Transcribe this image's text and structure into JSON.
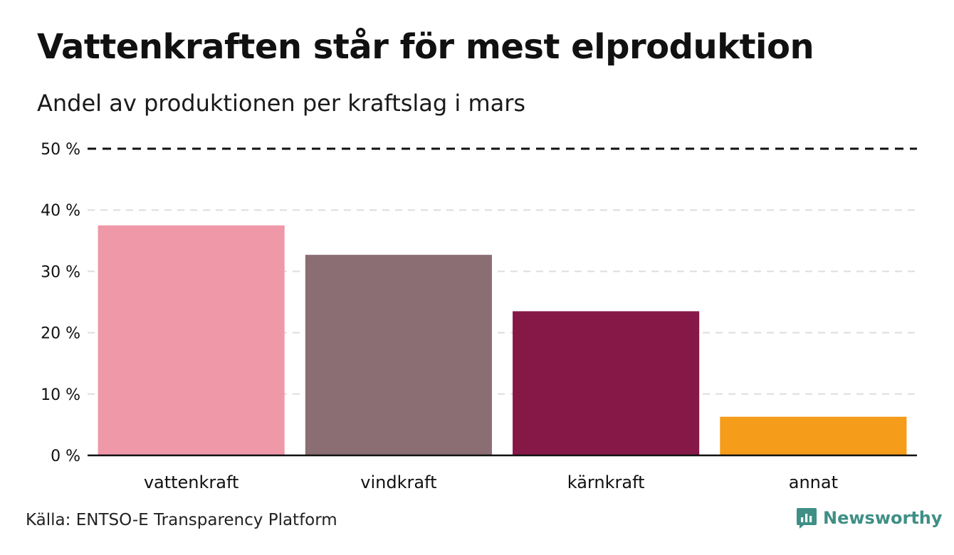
{
  "chart_data": {
    "type": "bar",
    "title": "Vattenkraften står för mest elproduktion",
    "subtitle": "Andel av produktionen per kraftslag i mars",
    "categories": [
      "vattenkraft",
      "vindkraft",
      "kärnkraft",
      "annat"
    ],
    "values": [
      37.5,
      32.7,
      23.5,
      6.3
    ],
    "colors": [
      "#ef98a8",
      "#8b6e74",
      "#861848",
      "#f59c1a"
    ],
    "ylim": [
      0,
      50
    ],
    "yticks": [
      0,
      10,
      20,
      30,
      40,
      50
    ],
    "ytick_labels": [
      "0 %",
      "10 %",
      "20 %",
      "30 %",
      "40 %",
      "50 %"
    ],
    "reference_line": 50,
    "xlabel": "",
    "ylabel": "",
    "grid": true
  },
  "footer": {
    "source": "Källa: ENTSO-E Transparency Platform",
    "brand": "Newsworthy"
  },
  "colors": {
    "brand": "#3f8f86",
    "grid": "#dddddd",
    "axis": "#111111"
  }
}
